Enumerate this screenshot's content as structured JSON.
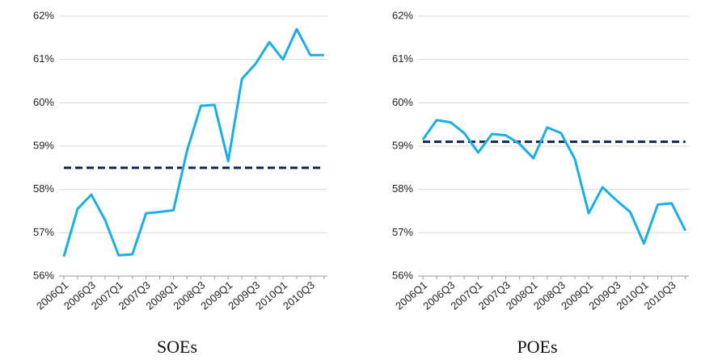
{
  "chart_data": [
    {
      "type": "line",
      "title": "SOEs",
      "categories": [
        "2006Q1",
        null,
        "2006Q3",
        null,
        "2007Q1",
        null,
        "2007Q3",
        null,
        "2008Q1",
        null,
        "2008Q3",
        null,
        "2009Q1",
        null,
        "2009Q3",
        null,
        "2010Q1",
        null,
        "2010Q3",
        null
      ],
      "values": [
        56.45,
        57.55,
        57.88,
        57.3,
        56.48,
        56.5,
        57.45,
        57.48,
        57.52,
        58.9,
        59.93,
        59.95,
        58.65,
        60.55,
        60.9,
        61.4,
        61.0,
        61.7,
        61.1,
        61.1
      ],
      "color": "#1aaee8",
      "hline": {
        "value": 58.5,
        "color": "#0d2350",
        "dashed": true
      },
      "ylim": [
        56,
        62
      ],
      "yticks": [
        {
          "value": 56,
          "label": "56%"
        },
        {
          "value": 57,
          "label": "57%"
        },
        {
          "value": 58,
          "label": "58%"
        },
        {
          "value": 59,
          "label": "59%"
        },
        {
          "value": 60,
          "label": "60%"
        },
        {
          "value": 61,
          "label": "61%"
        },
        {
          "value": 62,
          "label": "62%"
        }
      ],
      "grid": true
    },
    {
      "type": "line",
      "title": "POEs",
      "categories": [
        "2006Q1",
        null,
        "2006Q3",
        null,
        "2007Q1",
        null,
        "2007Q3",
        null,
        "2008Q1",
        null,
        "2008Q3",
        null,
        "2009Q1",
        null,
        "2009Q3",
        null,
        "2010Q1",
        null,
        "2010Q3",
        null
      ],
      "values": [
        59.15,
        59.6,
        59.55,
        59.3,
        58.85,
        59.28,
        59.25,
        59.05,
        58.72,
        59.43,
        59.3,
        58.7,
        57.45,
        58.05,
        57.75,
        57.48,
        56.75,
        57.65,
        57.68,
        57.05
      ],
      "color": "#1aaee8",
      "hline": {
        "value": 59.1,
        "color": "#0d2350",
        "dashed": true
      },
      "ylim": [
        56,
        62
      ],
      "yticks": [
        {
          "value": 56,
          "label": "56%"
        },
        {
          "value": 57,
          "label": "57%"
        },
        {
          "value": 58,
          "label": "58%"
        },
        {
          "value": 59,
          "label": "59%"
        },
        {
          "value": 60,
          "label": "60%"
        },
        {
          "value": 61,
          "label": "61%"
        },
        {
          "value": 62,
          "label": "62%"
        }
      ],
      "grid": true
    }
  ]
}
